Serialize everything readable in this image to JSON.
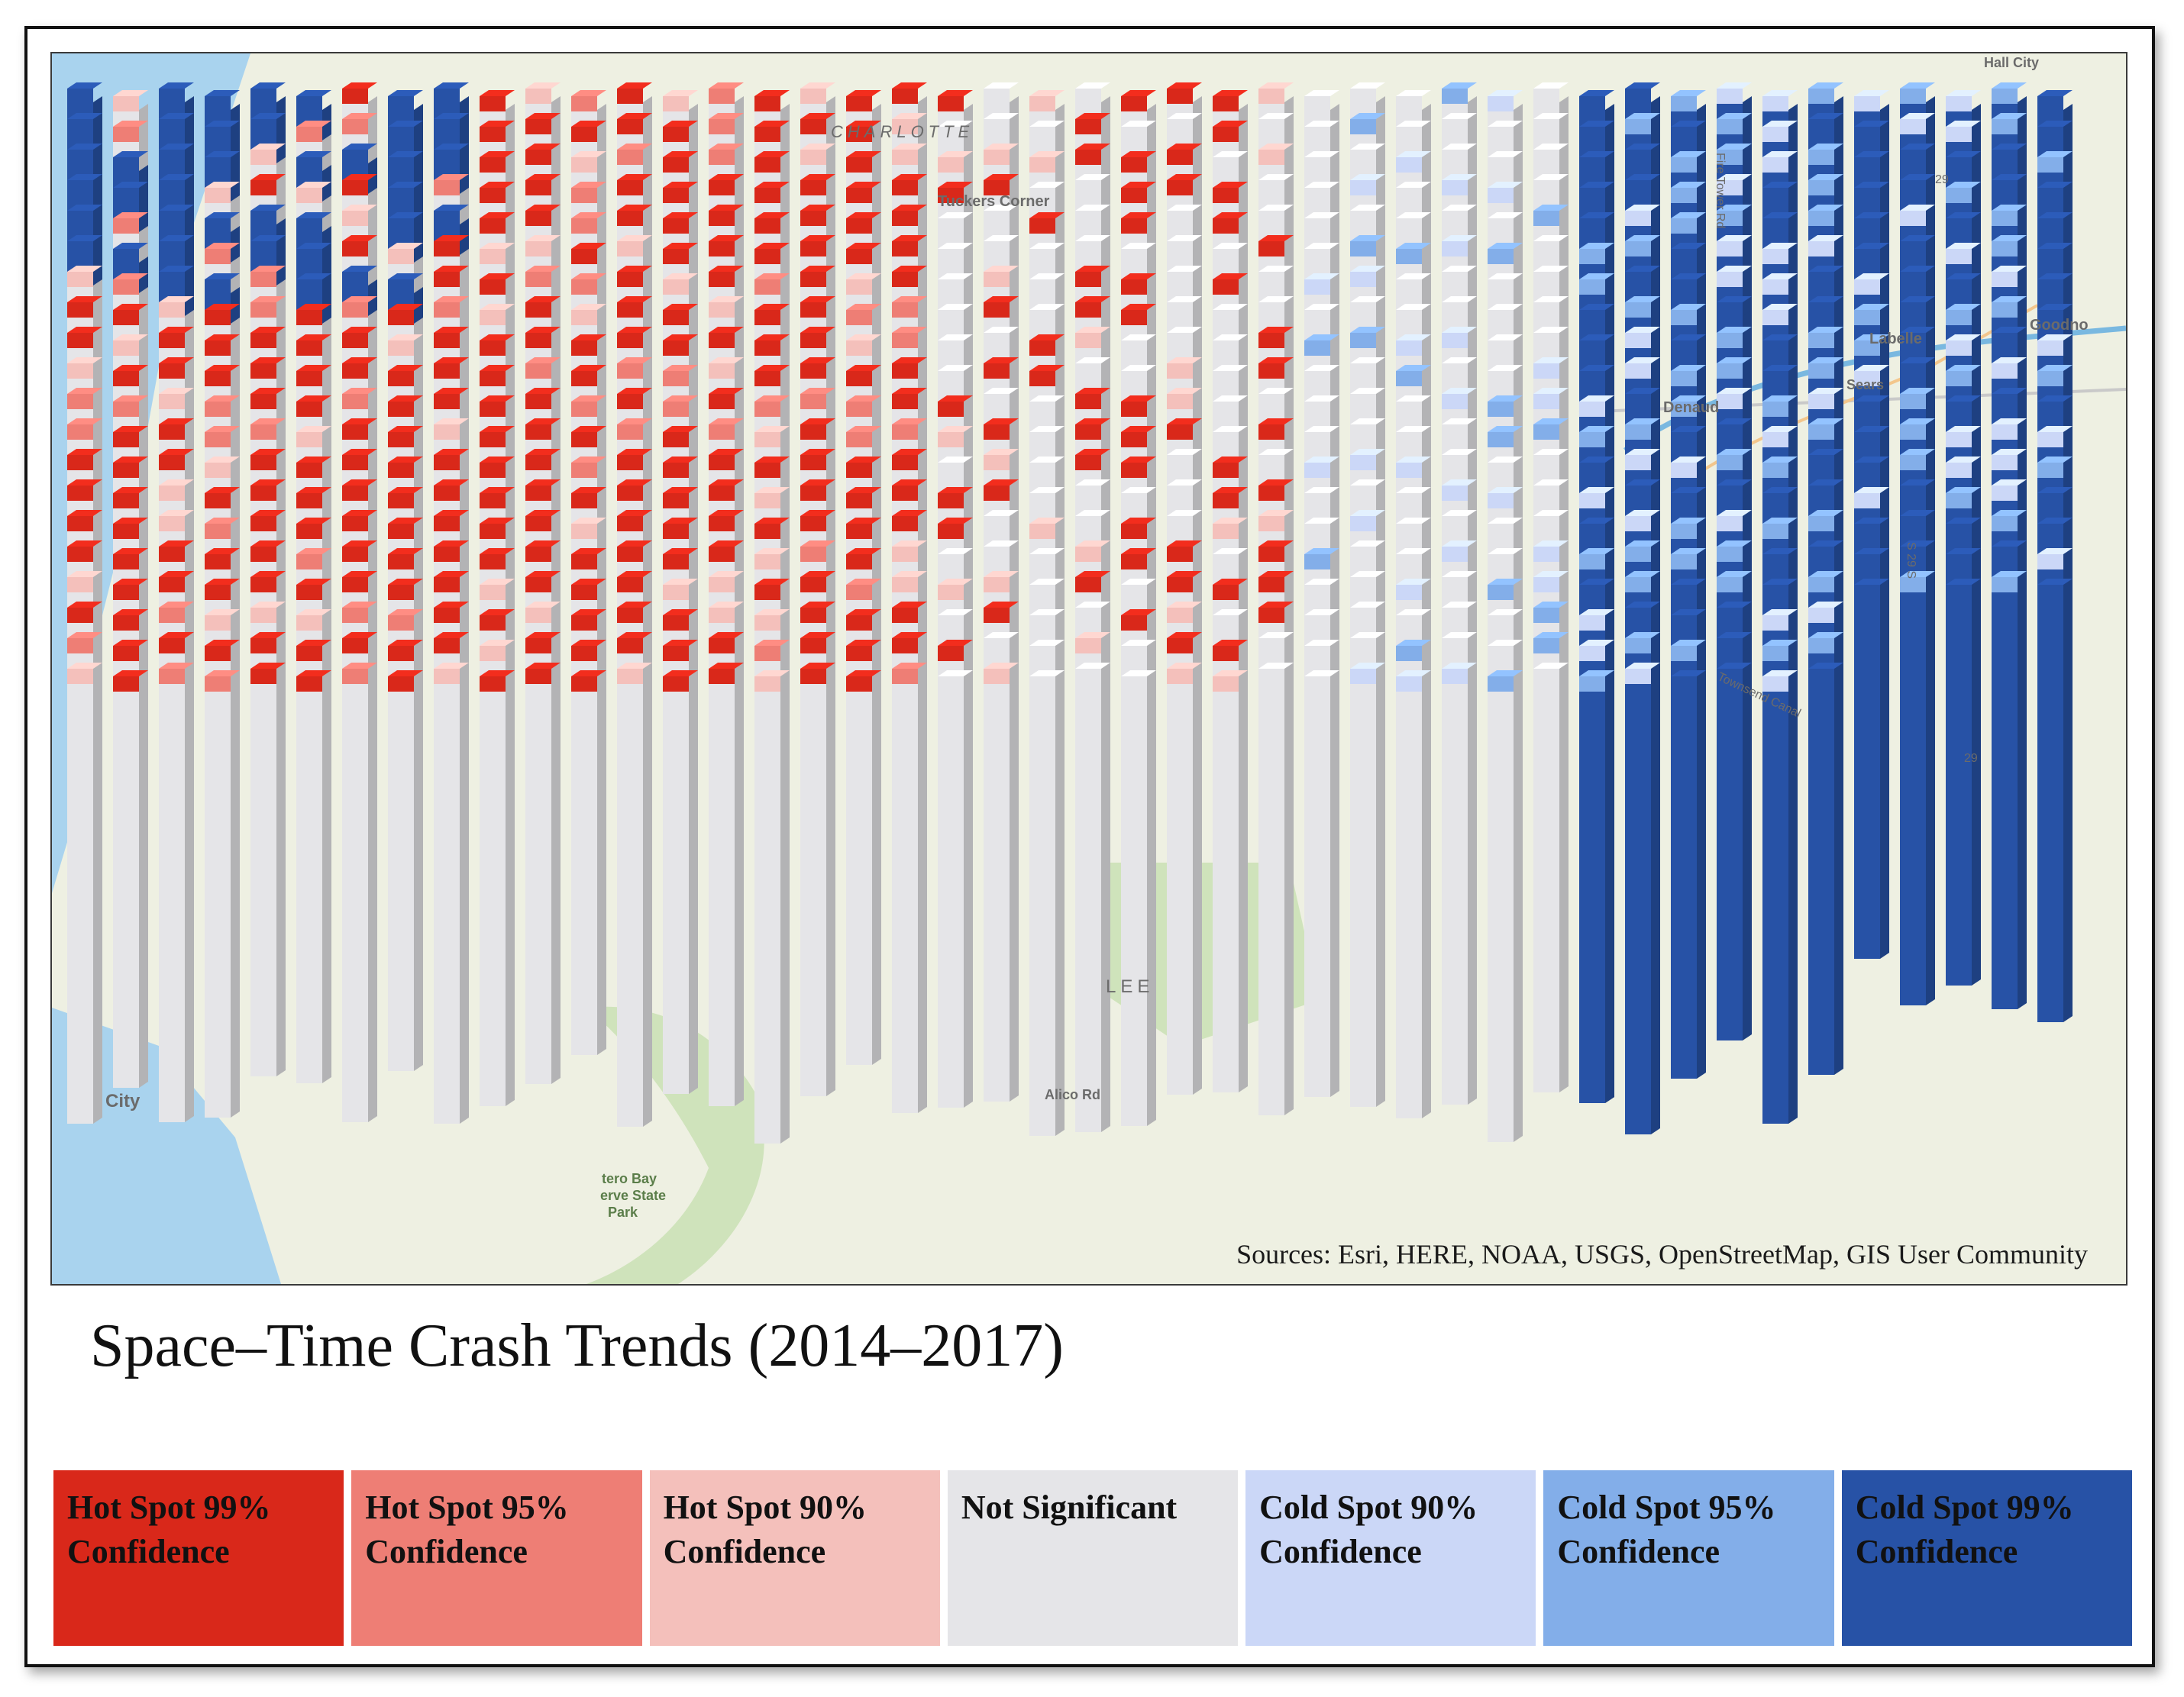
{
  "title": "Space–Time Crash Trends (2014–2017)",
  "sources": "Sources: Esri, HERE, NOAA, USGS, OpenStreetMap, GIS User Community",
  "map_labels": {
    "charlotte": "CHARLOTTE",
    "tuckers_corner": "Tuckers Corner",
    "hall_city": "Hall City",
    "labelle": "Labelle",
    "goodno": "Goodno",
    "denaud": "Denaud",
    "sears": "Sears",
    "lee": "LEE",
    "city": "City",
    "park_line1": "tero Bay",
    "park_line2": "erve State",
    "park_line3": "Park",
    "route_29a": "29",
    "route_29b": "29",
    "fire_tower_rd": "Fire Tower Rd",
    "alico_rd": "Alico Rd",
    "canal": "Townsend Canal",
    "road_s": "S 29 S"
  },
  "colors": {
    "hot99": "#d9281a",
    "hot95": "#ee7e75",
    "hot90": "#f4c0bb",
    "not_sig": "#e5e5e8",
    "cold90": "#cbd7f7",
    "cold95": "#83aee9",
    "cold99": "#2752a6",
    "water": "#a9d3ee",
    "land": "#eef0e2",
    "park": "#cfe3bb"
  },
  "legend": [
    {
      "line1": "Hot Spot 99%",
      "line2": "Confidence",
      "color": "#d9281a"
    },
    {
      "line1": "Hot Spot 95%",
      "line2": "Confidence",
      "color": "#ee7e75"
    },
    {
      "line1": "Hot Spot 90%",
      "line2": "Confidence",
      "color": "#f4c0bb"
    },
    {
      "line1": "Not Significant",
      "line2": "",
      "color": "#e5e5e8"
    },
    {
      "line1": "Cold Spot 90%",
      "line2": "Confidence",
      "color": "#cbd7f7"
    },
    {
      "line1": "Cold Spot 95%",
      "line2": "Confidence",
      "color": "#83aee9"
    },
    {
      "line1": "Cold Spot 99%",
      "line2": "Confidence",
      "color": "#2752a6"
    }
  ]
}
